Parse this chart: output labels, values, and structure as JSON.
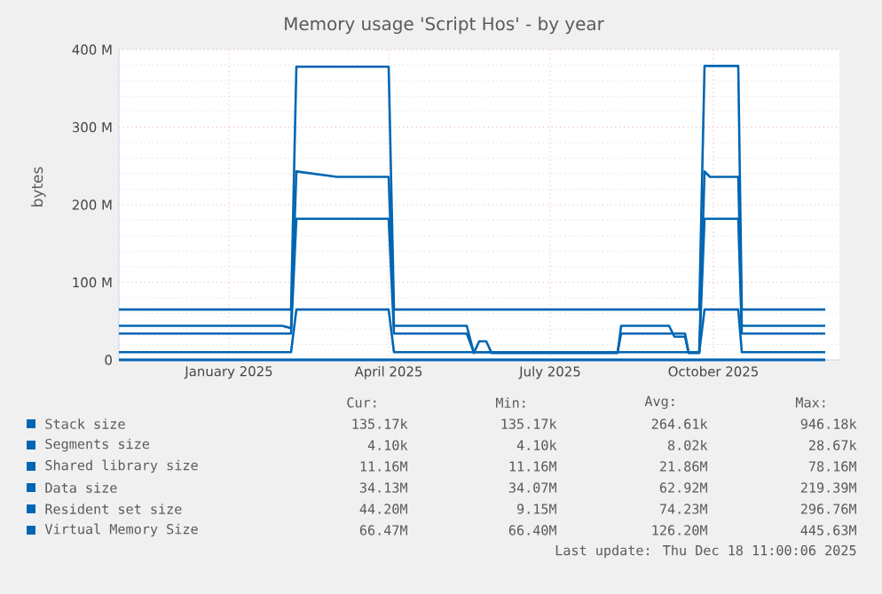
{
  "chart_data": {
    "type": "line",
    "title": "Memory usage 'Script Hos' - by year",
    "ylabel": "bytes",
    "x": [
      "2024-11-15",
      "2025-02-15",
      "2025-02-20",
      "2025-02-23",
      "2025-03-18",
      "2025-04-16",
      "2025-04-19",
      "2025-05-30",
      "2025-06-03",
      "2025-06-06",
      "2025-06-10",
      "2025-06-13",
      "2025-08-23",
      "2025-08-25",
      "2025-09-21",
      "2025-09-24",
      "2025-09-30",
      "2025-10-02",
      "2025-10-08",
      "2025-10-11",
      "2025-10-14",
      "2025-10-30",
      "2025-11-01",
      "2025-12-18"
    ],
    "series": [
      {
        "name": "Stack size",
        "color": "#0066b3",
        "values": [
          0.1,
          0.1,
          0.1,
          0.1,
          0.1,
          0.1,
          0.1,
          0.1,
          0.1,
          0.1,
          0.1,
          0.1,
          0.1,
          0.1,
          0.1,
          0.1,
          0.1,
          0.1,
          0.1,
          0.1,
          0.1,
          0.1,
          0.1,
          0.1
        ]
      },
      {
        "name": "Segments size",
        "color": "#0066b3",
        "values": [
          0,
          0,
          0,
          0,
          0,
          0,
          0,
          0,
          0,
          0,
          0,
          0,
          0,
          0,
          0,
          0,
          0,
          0,
          0,
          0,
          0,
          0,
          0,
          0
        ]
      },
      {
        "name": "Shared library size",
        "color": "#0066b3",
        "values": [
          10,
          10,
          10,
          65,
          65,
          65,
          10,
          10,
          10,
          10,
          10,
          10,
          10,
          10,
          10,
          10,
          10,
          10,
          10,
          65,
          65,
          65,
          10,
          10
        ]
      },
      {
        "name": "Data size",
        "color": "#0066b3",
        "values": [
          34,
          34,
          34,
          182,
          182,
          182,
          34,
          34,
          10,
          10,
          10,
          10,
          10,
          34,
          34,
          34,
          34,
          10,
          10,
          182,
          182,
          182,
          34,
          34
        ]
      },
      {
        "name": "Resident set size",
        "color": "#0066b3",
        "values": [
          44,
          44,
          41,
          243,
          236,
          236,
          44,
          44,
          9,
          24,
          24,
          9,
          9,
          44,
          44,
          30,
          30,
          9,
          9,
          243,
          236,
          236,
          44,
          44
        ]
      },
      {
        "name": "Virtual Memory Size",
        "color": "#0066b3",
        "values": [
          65,
          65,
          65,
          378,
          378,
          378,
          65,
          65,
          65,
          65,
          65,
          65,
          65,
          65,
          65,
          65,
          65,
          65,
          65,
          379,
          379,
          379,
          65,
          65
        ]
      }
    ],
    "xlim": [
      "2024-11-15",
      "2025-12-26"
    ],
    "xticks": [
      {
        "value": "2025-01-16",
        "label": "January 2025"
      },
      {
        "value": "2025-04-16",
        "label": "April 2025"
      },
      {
        "value": "2025-07-16",
        "label": "July 2025"
      },
      {
        "value": "2025-10-16",
        "label": "October 2025"
      }
    ],
    "ylim": [
      0,
      400
    ],
    "yticks": [
      {
        "value": 0,
        "label": "0"
      },
      {
        "value": 100,
        "label": "100 M"
      },
      {
        "value": 200,
        "label": "200 M"
      },
      {
        "value": 300,
        "label": "300 M"
      },
      {
        "value": 400,
        "label": "400 M"
      }
    ],
    "grid": true,
    "legend": "bottom",
    "marker": "none",
    "line_style": "solid",
    "annotations": [
      "Cur:",
      "Min:",
      "Avg:",
      "Max:",
      "135.17k",
      "135.17k",
      "264.61k",
      "946.18k",
      "4.10k",
      "4.10k",
      "8.02k",
      "28.67k",
      "11.16M",
      "11.16M",
      "21.86M",
      "78.16M",
      "34.13M",
      "34.07M",
      "62.92M",
      "219.39M",
      "44.20M",
      "9.15M",
      "74.23M",
      "296.76M",
      "66.47M",
      "66.40M",
      "126.20M",
      "445.63M",
      "Last update: Thu Dec 18 11:00:06 2025"
    ]
  }
}
